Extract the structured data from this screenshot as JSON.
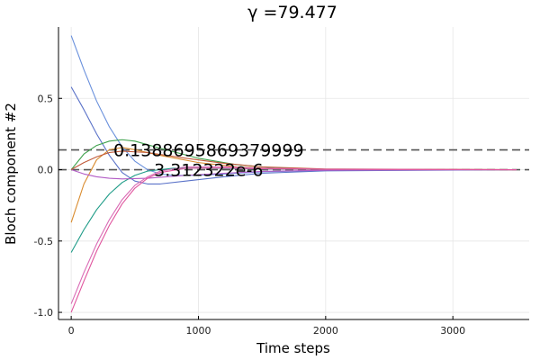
{
  "chart_data": {
    "type": "line",
    "title": "γ =79.477",
    "xlabel": "Time steps",
    "ylabel": "Bloch component #2",
    "xlim": [
      -100,
      3600
    ],
    "ylim": [
      -1.05,
      1.0
    ],
    "xticks": [
      0,
      1000,
      2000,
      3000
    ],
    "xtick_labels": [
      "0",
      "1000",
      "2000",
      "3000"
    ],
    "yticks": [
      -1.0,
      -0.5,
      0.0,
      0.5
    ],
    "ytick_labels": [
      "-1.0",
      "-0.5",
      "0.0",
      "0.5"
    ],
    "grid": true,
    "legend": "none",
    "series": [
      {
        "color": "#6990DC",
        "values": [
          [
            0,
            0.94
          ],
          [
            100,
            0.7
          ],
          [
            200,
            0.48
          ],
          [
            300,
            0.3
          ],
          [
            400,
            0.16
          ],
          [
            500,
            0.06
          ],
          [
            600,
            0.0
          ],
          [
            700,
            -0.03
          ],
          [
            800,
            -0.04
          ],
          [
            1000,
            -0.04
          ],
          [
            1200,
            -0.03
          ],
          [
            1500,
            -0.015
          ],
          [
            2000,
            -0.005
          ],
          [
            3500,
            0.0
          ]
        ]
      },
      {
        "color": "#5A72C8",
        "values": [
          [
            0,
            0.58
          ],
          [
            100,
            0.42
          ],
          [
            200,
            0.25
          ],
          [
            300,
            0.1
          ],
          [
            400,
            -0.02
          ],
          [
            500,
            -0.08
          ],
          [
            600,
            -0.1
          ],
          [
            700,
            -0.1
          ],
          [
            900,
            -0.08
          ],
          [
            1200,
            -0.05
          ],
          [
            1500,
            -0.025
          ],
          [
            2000,
            -0.008
          ],
          [
            3500,
            0.0
          ]
        ]
      },
      {
        "color": "#3DA14B",
        "values": [
          [
            0,
            0.0
          ],
          [
            100,
            0.11
          ],
          [
            200,
            0.17
          ],
          [
            300,
            0.2
          ],
          [
            400,
            0.21
          ],
          [
            500,
            0.2
          ],
          [
            700,
            0.15
          ],
          [
            1000,
            0.08
          ],
          [
            1300,
            0.035
          ],
          [
            1600,
            0.012
          ],
          [
            2000,
            0.003
          ],
          [
            3500,
            0.0
          ]
        ]
      },
      {
        "color": "#D98B2E",
        "values": [
          [
            0,
            -0.37
          ],
          [
            100,
            -0.1
          ],
          [
            200,
            0.07
          ],
          [
            300,
            0.14
          ],
          [
            400,
            0.155
          ],
          [
            500,
            0.14
          ],
          [
            700,
            0.1
          ],
          [
            1000,
            0.05
          ],
          [
            1300,
            0.02
          ],
          [
            1600,
            0.007
          ],
          [
            2000,
            0.002
          ],
          [
            3500,
            0.0
          ]
        ]
      },
      {
        "color": "#1D9B87",
        "values": [
          [
            0,
            -0.58
          ],
          [
            100,
            -0.42
          ],
          [
            200,
            -0.28
          ],
          [
            300,
            -0.17
          ],
          [
            400,
            -0.09
          ],
          [
            500,
            -0.04
          ],
          [
            600,
            -0.01
          ],
          [
            800,
            0.01
          ],
          [
            1000,
            0.012
          ],
          [
            1300,
            0.008
          ],
          [
            1600,
            0.004
          ],
          [
            2000,
            0.001
          ],
          [
            3500,
            0.0
          ]
        ]
      },
      {
        "color": "#B25BC5",
        "values": [
          [
            0,
            0.0
          ],
          [
            100,
            -0.03
          ],
          [
            200,
            -0.05
          ],
          [
            300,
            -0.06
          ],
          [
            400,
            -0.065
          ],
          [
            600,
            -0.06
          ],
          [
            900,
            -0.04
          ],
          [
            1200,
            -0.025
          ],
          [
            1500,
            -0.012
          ],
          [
            2000,
            -0.004
          ],
          [
            3500,
            0.0
          ]
        ]
      },
      {
        "color": "#C05A3A",
        "values": [
          [
            0,
            0.0
          ],
          [
            100,
            0.05
          ],
          [
            200,
            0.09
          ],
          [
            300,
            0.12
          ],
          [
            400,
            0.13
          ],
          [
            600,
            0.12
          ],
          [
            900,
            0.08
          ],
          [
            1200,
            0.045
          ],
          [
            1500,
            0.02
          ],
          [
            2000,
            0.005
          ],
          [
            3500,
            0.0
          ]
        ]
      },
      {
        "color": "#D96AB5",
        "values": [
          [
            0,
            -0.94
          ],
          [
            100,
            -0.72
          ],
          [
            200,
            -0.52
          ],
          [
            300,
            -0.35
          ],
          [
            400,
            -0.21
          ],
          [
            500,
            -0.11
          ],
          [
            600,
            -0.05
          ],
          [
            700,
            -0.01
          ],
          [
            900,
            0.02
          ],
          [
            1200,
            0.02
          ],
          [
            1500,
            0.01
          ],
          [
            2000,
            0.003
          ],
          [
            3500,
            0.0
          ]
        ]
      },
      {
        "color": "#E0559E",
        "values": [
          [
            0,
            -1.0
          ],
          [
            100,
            -0.78
          ],
          [
            200,
            -0.57
          ],
          [
            300,
            -0.39
          ],
          [
            400,
            -0.24
          ],
          [
            500,
            -0.13
          ],
          [
            600,
            -0.06
          ],
          [
            700,
            -0.02
          ],
          [
            900,
            0.01
          ],
          [
            1200,
            0.012
          ],
          [
            1500,
            0.006
          ],
          [
            2000,
            0.002
          ],
          [
            3500,
            0.0
          ]
        ]
      }
    ],
    "hlines": [
      {
        "y": 0.1388695869379999,
        "color": "#555555",
        "style": "dashed"
      },
      {
        "y": 0.0,
        "color": "#555555",
        "style": "dashed"
      }
    ],
    "annotations": [
      {
        "text": "0.1388695869379999",
        "x": 1080,
        "y": 0.1388695869379999
      },
      {
        "text": "3.312322e-6",
        "x": 1080,
        "y": 0.0
      }
    ]
  }
}
